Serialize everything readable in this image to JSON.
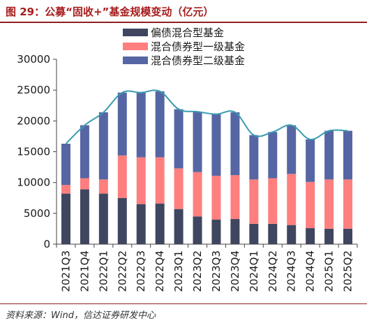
{
  "header": {
    "title": "图 29：公募“固收+”基金规模变动（亿元）"
  },
  "footer": {
    "source": "资料来源：Wind，信达证券研发中心"
  },
  "colors": {
    "pianzhai": "#3f4660",
    "yiji": "#ff7f7f",
    "erji": "#5666a4",
    "line": "#3a9bb0"
  },
  "chart_data": {
    "type": "bar",
    "stacked": true,
    "categories": [
      "2021Q3",
      "2021Q4",
      "2022Q1",
      "2022Q2",
      "2022Q3",
      "2022Q4",
      "2023Q1",
      "2023Q2",
      "2023Q3",
      "2023Q4",
      "2024Q1",
      "2024Q2",
      "2024Q3",
      "2024Q4",
      "2025Q1",
      "2025Q2"
    ],
    "series": [
      {
        "name": "偏债混合型基金",
        "values": [
          8200,
          8900,
          8200,
          7500,
          6500,
          6600,
          5700,
          4500,
          4000,
          4100,
          3300,
          3300,
          3100,
          2600,
          2500,
          2500
        ]
      },
      {
        "name": "混合债券型一级基金",
        "values": [
          1400,
          1800,
          2300,
          6900,
          7600,
          7500,
          6600,
          7200,
          7100,
          7100,
          7200,
          7400,
          8300,
          7500,
          8000,
          8000
        ]
      },
      {
        "name": "混合债券型二级基金",
        "values": [
          6700,
          8600,
          10900,
          10200,
          10500,
          10700,
          9600,
          9800,
          10000,
          10200,
          7200,
          7500,
          7900,
          6900,
          7900,
          7900
        ]
      }
    ],
    "totals": [
      16300,
      19300,
      21400,
      24600,
      24600,
      24800,
      21900,
      21500,
      21100,
      21400,
      17700,
      18200,
      19300,
      17000,
      18400,
      18400
    ],
    "ylim": [
      0,
      30000
    ],
    "yticks": [
      "0",
      "5000",
      "10000",
      "15000",
      "20000",
      "25000",
      "30000"
    ],
    "legend": "top"
  }
}
